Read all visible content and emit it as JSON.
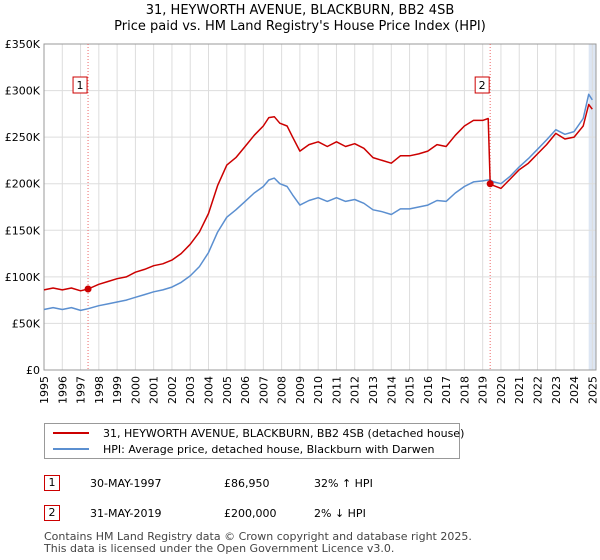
{
  "chart_data": {
    "type": "line",
    "title": "31, HEYWORTH AVENUE, BLACKBURN, BB2 4SB",
    "subtitle": "Price paid vs. HM Land Registry's House Price Index (HPI)",
    "xlabel": "",
    "ylabel": "",
    "xlim": [
      1995,
      2025.2
    ],
    "ylim": [
      0,
      350000
    ],
    "y_ticks": [
      0,
      50000,
      100000,
      150000,
      200000,
      250000,
      300000,
      350000
    ],
    "y_tick_labels": [
      "£0",
      "£50K",
      "£100K",
      "£150K",
      "£200K",
      "£250K",
      "£300K",
      "£350K"
    ],
    "x_ticks": [
      1995,
      1996,
      1997,
      1998,
      1999,
      2000,
      2001,
      2002,
      2003,
      2004,
      2005,
      2006,
      2007,
      2008,
      2009,
      2010,
      2011,
      2012,
      2013,
      2014,
      2015,
      2016,
      2017,
      2018,
      2019,
      2020,
      2021,
      2022,
      2023,
      2024,
      2025
    ],
    "x_tick_labels": [
      "1995",
      "1996",
      "1997",
      "1998",
      "1999",
      "2000",
      "2001",
      "2002",
      "2003",
      "2004",
      "2005",
      "2006",
      "2007",
      "2008",
      "2009",
      "2010",
      "2011",
      "2012",
      "2013",
      "2014",
      "2015",
      "2016",
      "2017",
      "2018",
      "2019",
      "2020",
      "2021",
      "2022",
      "2023",
      "2024",
      "2025"
    ],
    "grid": true,
    "colors": {
      "property": "#cc0000",
      "hpi": "#5b8fd0",
      "grid": "#dddddd",
      "highlight": "#dde6f3",
      "vline": "#ee6666"
    },
    "series": [
      {
        "name": "31, HEYWORTH AVENUE, BLACKBURN, BB2 4SB (detached house)",
        "x": [
          1995.0,
          1995.5,
          1996.0,
          1996.5,
          1997.0,
          1997.41,
          1998.0,
          1998.5,
          1999.0,
          1999.5,
          2000.0,
          2000.5,
          2001.0,
          2001.5,
          2002.0,
          2002.5,
          2003.0,
          2003.5,
          2004.0,
          2004.5,
          2005.0,
          2005.5,
          2006.0,
          2006.5,
          2007.0,
          2007.3,
          2007.6,
          2007.9,
          2008.3,
          2008.6,
          2009.0,
          2009.5,
          2010.0,
          2010.5,
          2011.0,
          2011.5,
          2012.0,
          2012.5,
          2013.0,
          2013.5,
          2014.0,
          2014.5,
          2015.0,
          2015.5,
          2016.0,
          2016.5,
          2017.0,
          2017.5,
          2018.0,
          2018.5,
          2019.0,
          2019.3,
          2019.41,
          2019.6,
          2020.0,
          2020.5,
          2021.0,
          2021.5,
          2022.0,
          2022.5,
          2023.0,
          2023.5,
          2024.0,
          2024.5,
          2024.8,
          2025.0
        ],
        "values": [
          86000,
          88000,
          86000,
          88000,
          85000,
          86950,
          92000,
          95000,
          98000,
          100000,
          105000,
          108000,
          112000,
          114000,
          118000,
          125000,
          135000,
          148000,
          168000,
          198000,
          220000,
          228000,
          240000,
          252000,
          262000,
          271000,
          272000,
          265000,
          262000,
          250000,
          235000,
          242000,
          245000,
          240000,
          245000,
          240000,
          243000,
          238000,
          228000,
          225000,
          222000,
          230000,
          230000,
          232000,
          235000,
          242000,
          240000,
          252000,
          262000,
          268000,
          268000,
          270000,
          200000,
          198000,
          195000,
          205000,
          215000,
          222000,
          232000,
          242000,
          254000,
          248000,
          250000,
          262000,
          285000,
          280000
        ]
      },
      {
        "name": "HPI: Average price, detached house, Blackburn with Darwen",
        "x": [
          1995.0,
          1995.5,
          1996.0,
          1996.5,
          1997.0,
          1997.41,
          1998.0,
          1998.5,
          1999.0,
          1999.5,
          2000.0,
          2000.5,
          2001.0,
          2001.5,
          2002.0,
          2002.5,
          2003.0,
          2003.5,
          2004.0,
          2004.5,
          2005.0,
          2005.5,
          2006.0,
          2006.5,
          2007.0,
          2007.3,
          2007.6,
          2007.9,
          2008.3,
          2008.6,
          2009.0,
          2009.5,
          2010.0,
          2010.5,
          2011.0,
          2011.5,
          2012.0,
          2012.5,
          2013.0,
          2013.5,
          2014.0,
          2014.5,
          2015.0,
          2015.5,
          2016.0,
          2016.5,
          2017.0,
          2017.5,
          2018.0,
          2018.5,
          2019.0,
          2019.3,
          2019.41,
          2019.6,
          2020.0,
          2020.5,
          2021.0,
          2021.5,
          2022.0,
          2022.5,
          2023.0,
          2023.5,
          2024.0,
          2024.5,
          2024.8,
          2025.0
        ],
        "values": [
          65000,
          67000,
          65000,
          67000,
          64000,
          65800,
          69000,
          71000,
          73000,
          75000,
          78000,
          81000,
          84000,
          86000,
          89000,
          94000,
          101000,
          111000,
          126000,
          148000,
          164000,
          172000,
          181000,
          190000,
          197000,
          204000,
          206000,
          200000,
          197000,
          188000,
          177000,
          182000,
          185000,
          181000,
          185000,
          181000,
          183000,
          179000,
          172000,
          170000,
          167000,
          173000,
          173000,
          175000,
          177000,
          182000,
          181000,
          190000,
          197000,
          202000,
          203000,
          204000,
          204000,
          202000,
          200000,
          208000,
          218000,
          227000,
          237000,
          247000,
          258000,
          253000,
          256000,
          270000,
          296000,
          290000
        ]
      }
    ],
    "annotations": [
      {
        "id": "1",
        "x": 1997.41,
        "price": 86950
      },
      {
        "id": "2",
        "x": 2019.41,
        "price": 200000
      }
    ]
  },
  "legend": {
    "property_label": "31, HEYWORTH AVENUE, BLACKBURN, BB2 4SB (detached house)",
    "hpi_label": "HPI: Average price, detached house, Blackburn with Darwen"
  },
  "transactions": [
    {
      "num": "1",
      "date": "30-MAY-1997",
      "price": "£86,950",
      "hpi": "32% ↑ HPI"
    },
    {
      "num": "2",
      "date": "31-MAY-2019",
      "price": "£200,000",
      "hpi": "2% ↓ HPI"
    }
  ],
  "footer": {
    "line1": "Contains HM Land Registry data © Crown copyright and database right 2025.",
    "line2": "This data is licensed under the Open Government Licence v3.0."
  }
}
